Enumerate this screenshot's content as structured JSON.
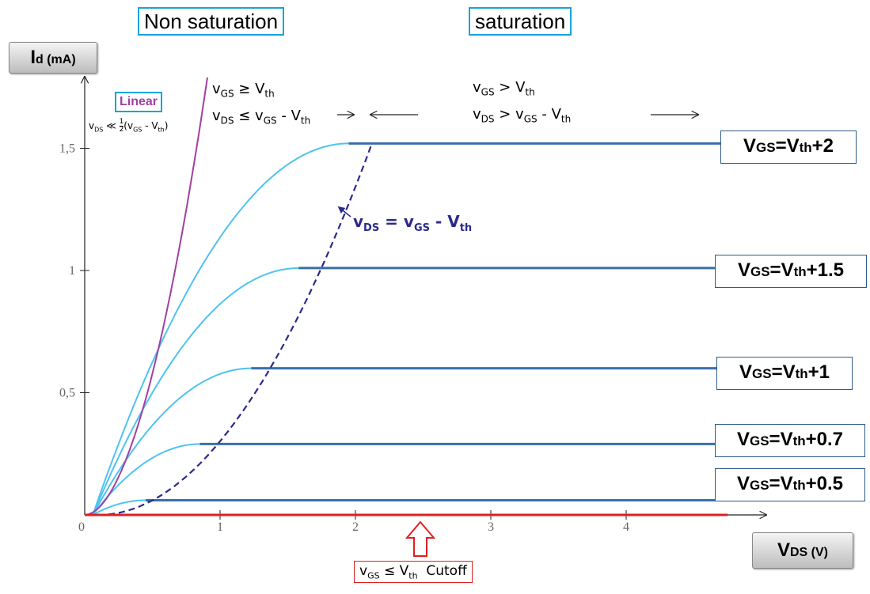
{
  "chart_data": {
    "type": "line",
    "xlabel": "VDS (V)",
    "xlabel_main": "V",
    "xlabel_sub": "DS (V)",
    "ylabel": "Id (mA)",
    "ylabel_main": "I",
    "ylabel_sub": "d (mA)",
    "xlim": [
      0,
      5
    ],
    "ylim": [
      0,
      1.8
    ],
    "x_ticks": [
      "0",
      "1",
      "2",
      "3",
      "4"
    ],
    "y_ticks": [
      "0,5",
      "1",
      "1,5"
    ],
    "series": [
      {
        "name": "VGS=Vth+2",
        "label_main": "V",
        "label_sub": "GS",
        "label_rest": "=V",
        "label_sub2": "th",
        "label_end": "+2",
        "vov": 1.95,
        "isat": 1.52
      },
      {
        "name": "VGS=Vth+1.5",
        "label_main": "V",
        "label_sub": "GS",
        "label_rest": "=V",
        "label_sub2": "th",
        "label_end": "+1.5",
        "vov": 1.58,
        "isat": 1.01
      },
      {
        "name": "VGS=Vth+1",
        "label_main": "V",
        "label_sub": "GS",
        "label_rest": "=V",
        "label_sub2": "th",
        "label_end": "+1",
        "vov": 1.23,
        "isat": 0.6
      },
      {
        "name": "VGS=Vth+0.7",
        "label_main": "V",
        "label_sub": "GS",
        "label_rest": "=V",
        "label_sub2": "th",
        "label_end": "+0.7",
        "vov": 0.85,
        "isat": 0.29
      },
      {
        "name": "VGS=Vth+0.5",
        "label_main": "V",
        "label_sub": "GS",
        "label_rest": "=V",
        "label_sub2": "th",
        "label_end": "+0.5",
        "vov": 0.45,
        "isat": 0.06
      }
    ],
    "x_end": 4.75,
    "boundary_label": {
      "v1": "v",
      "s1": "DS",
      "eq": " = v",
      "s2": "GS",
      "minus": " - V",
      "s3": "th"
    },
    "regions": {
      "non_saturation": "Non saturation",
      "saturation": "saturation",
      "linear": "Linear"
    },
    "conditions": {
      "nonsat_line1": {
        "a": "v",
        "as": "GS",
        "op": " ≥ V",
        "bs": "th"
      },
      "nonsat_line2": {
        "a": "v",
        "as": "DS",
        "op": " ≤ v",
        "bs": "GS",
        "tail": " - V",
        "cs": "th"
      },
      "sat_line1": {
        "a": "v",
        "as": "GS",
        "op": " > V",
        "bs": "th"
      },
      "sat_line2": {
        "a": "v",
        "as": "DS",
        "op": " > v",
        "bs": "GS",
        "tail": " - V",
        "cs": "th"
      },
      "linear": {
        "a": "v",
        "as": "DS",
        "op": " ≪ ",
        "frac_num": "1",
        "frac_den": "2",
        "paren": "(v",
        "bs": "GS",
        "tail": " - V",
        "cs": "th",
        "close": ")"
      },
      "cutoff": {
        "a": "v",
        "as": "GS",
        "op": " ≤ V",
        "bs": "th",
        "word": "  Cutoff"
      }
    },
    "colors": {
      "curve": "#4ec3f0",
      "saturation_line": "#3a6ea8",
      "boundary": "#2a2a8a",
      "linear": "#a040a0",
      "cutoff": "#e02020",
      "axis": "#222222",
      "arrow": "#e02020"
    }
  }
}
